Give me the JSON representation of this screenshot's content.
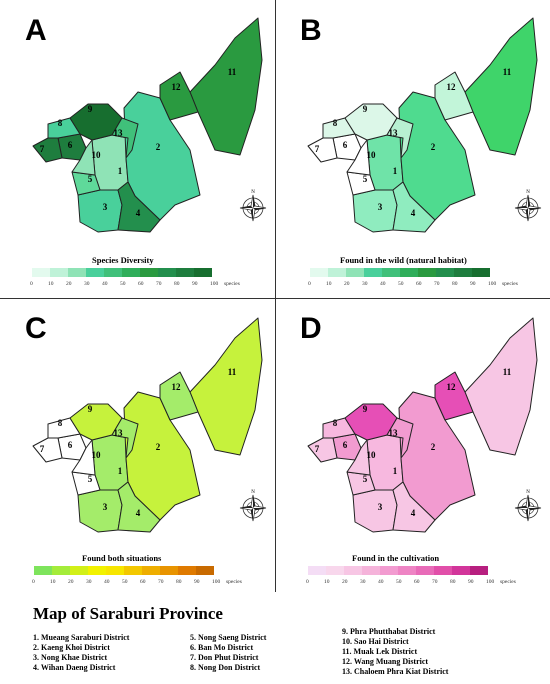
{
  "panels": [
    {
      "letter": "A",
      "caption": "Species Diversity",
      "fills": [
        "#8fe3b6",
        "#49d09b",
        "#49d09b",
        "#238f4d",
        "#5fd99a",
        "#1e7d3e",
        "#1e7d3e",
        "#49d09b",
        "#176e2f",
        "#8fe3b6",
        "#2a9a40",
        "#2a9a40",
        "#40c07a"
      ],
      "legend": [
        "#e3faee",
        "#bff2d8",
        "#8fe3b6",
        "#49d09b",
        "#40c07a",
        "#2fae5a",
        "#2a9a40",
        "#238f4d",
        "#1e7d3e",
        "#176e2f"
      ]
    },
    {
      "letter": "B",
      "caption": "Found in the wild (natural habitat)",
      "fills": [
        "#6fe3a8",
        "#4fdb8f",
        "#8fecbf",
        "#8fecbf",
        "#ffffff",
        "#ffffff",
        "#ffffff",
        "#dcf7e8",
        "#dcf7e8",
        "#ffffff",
        "#3fd46a",
        "#c2f5d9",
        "#b8f0d2"
      ],
      "legend": [
        "#e3faee",
        "#bff2d8",
        "#8fe3b6",
        "#49d09b",
        "#40c07a",
        "#2fae5a",
        "#2a9a40",
        "#238f4d",
        "#1e7d3e",
        "#176e2f"
      ]
    },
    {
      "letter": "C",
      "caption": "Found both situations",
      "fills": [
        "#a4ec6a",
        "#c6f23c",
        "#a4ec6a",
        "#a4ec6a",
        "#ffffff",
        "#ffffff",
        "#ffffff",
        "#ffffff",
        "#c6f23c",
        "#ffffff",
        "#c6f23c",
        "#a4ec6a",
        "#a4ec6a"
      ],
      "legend": [
        "#7ee45c",
        "#a4ec3a",
        "#d2f018",
        "#f2f200",
        "#f7e600",
        "#f3c800",
        "#eeae00",
        "#e89400",
        "#df7a00",
        "#c86a00"
      ]
    },
    {
      "letter": "D",
      "caption": "Found in the cultivation",
      "fills": [
        "#f7b8df",
        "#f29bd0",
        "#f7c6e4",
        "#f7c6e4",
        "#f7c6e4",
        "#f29bd0",
        "#f7c6e4",
        "#f7b8df",
        "#e64fb6",
        "#f7c6e4",
        "#f7c6e4",
        "#e64fb6",
        "#f29bd0"
      ],
      "legend": [
        "#f4ddf5",
        "#f8d7ec",
        "#f7c6e4",
        "#f5b3da",
        "#f29bd0",
        "#ee84c4",
        "#e86bb8",
        "#e14fa9",
        "#d2359a",
        "#b71f7f"
      ]
    }
  ],
  "district_numbers": [
    "1",
    "2",
    "3",
    "4",
    "5",
    "6",
    "7",
    "8",
    "9",
    "10",
    "11",
    "12",
    "13"
  ],
  "legend_ticks": [
    "0",
    "10",
    "20",
    "30",
    "40",
    "50",
    "60",
    "70",
    "80",
    "90",
    "100"
  ],
  "legend_unit": "species",
  "compass_letter": "N",
  "map_title": "Map of Saraburi Province",
  "districts_col1": [
    "1.   Mueang Saraburi District",
    "2.   Kaeng Khoi District",
    "3.   Nong Khae District",
    "4.   Wihan Daeng District"
  ],
  "districts_col2": [
    "5.   Nong Saeng District",
    "6.   Ban Mo District",
    "7.   Don Phut District",
    "8.   Nong Don District"
  ],
  "districts_col3": [
    "9.   Phra Phutthabat District",
    "10.  Sao Hai District",
    "11.  Muak Lek District",
    "12.  Wang Muang District",
    "13.  Chaloem Phra Kiat District"
  ]
}
